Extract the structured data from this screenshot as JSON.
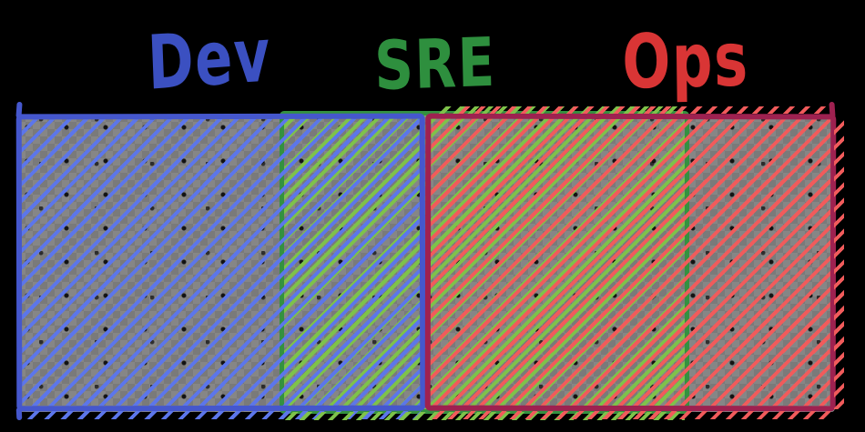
{
  "diagram": {
    "type": "overlap-bar",
    "description": "Hand-drawn diagram of three overlapping hatched rectangles showing Dev, SRE and Ops responsibility overlap",
    "labels": {
      "dev": "Dev",
      "sre": "SRE",
      "ops": "Ops"
    },
    "colors": {
      "background": "#000000",
      "canvas_fill_light": "#868686",
      "canvas_fill_dark": "#7a7a7a",
      "dev_text": "#3b50c1",
      "dev_border": "#4557cd",
      "dev_hatch": "#5c76ea",
      "sre_text": "#2e8f3e",
      "sre_border": "#349140",
      "sre_hatch": "#7ec24a",
      "ops_text": "#d93535",
      "ops_border": "#9e2150",
      "ops_hatch": "#f15b5b"
    }
  }
}
